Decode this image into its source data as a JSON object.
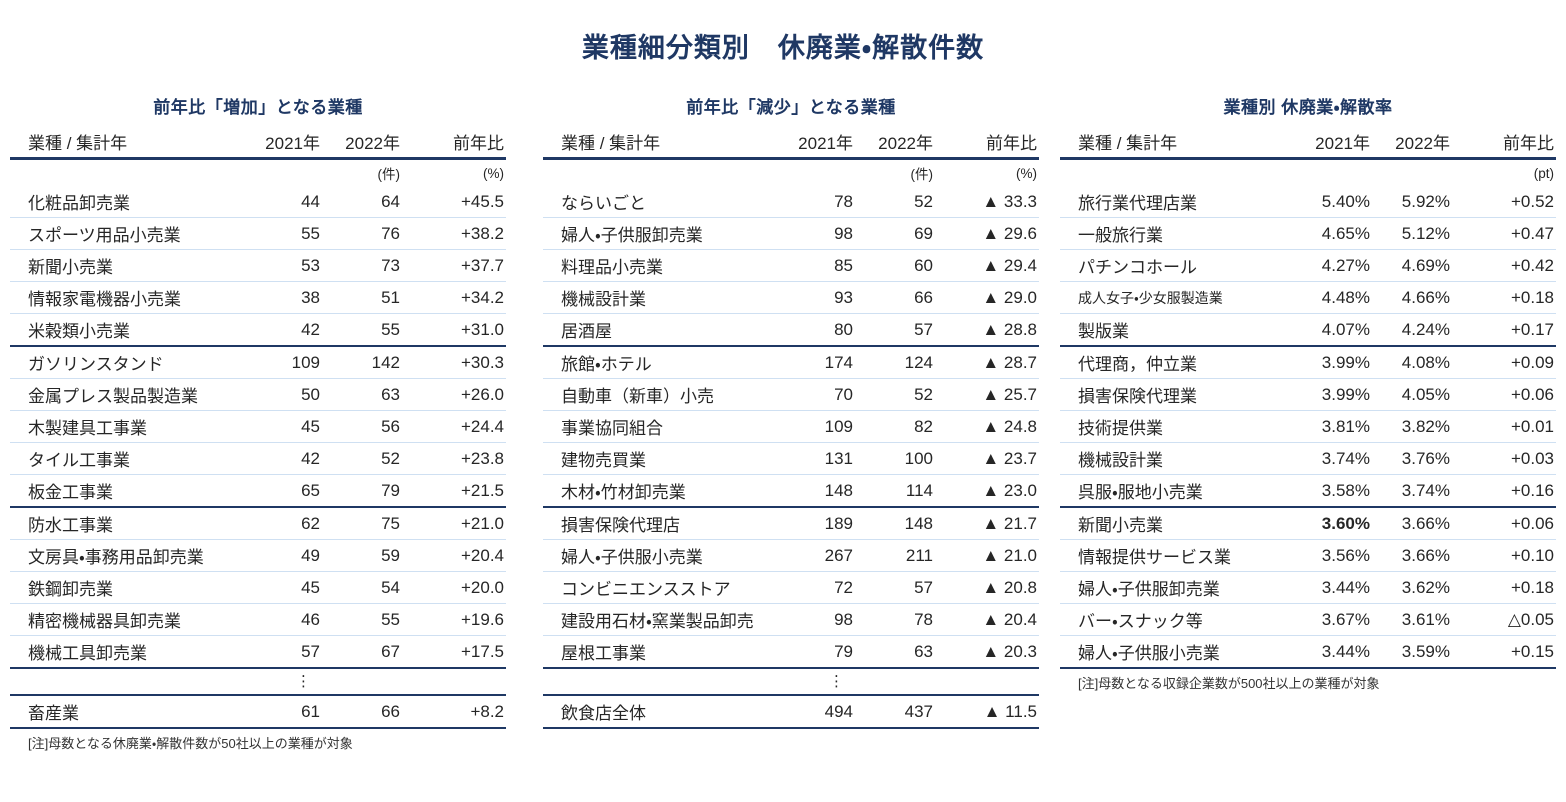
{
  "page_title": "業種細分類別　休廃業・解散件数",
  "colors": {
    "accent_navy": "#1f3864",
    "row_divider": "#cfe0f2",
    "body_text": "#262626"
  },
  "ellipsis_glyph": "⋮",
  "tables": [
    {
      "subtitle": "前年比「増加」となる業種",
      "col_headers": [
        "業種 / 集計年",
        "2021年",
        "2022年",
        "前年比"
      ],
      "units": [
        "",
        "",
        "(件)",
        "(%)"
      ],
      "rows": [
        {
          "label": "化粧品卸売業",
          "v1": "44",
          "v2": "64",
          "yoy": "+45.5"
        },
        {
          "label": "スポーツ用品小売業",
          "v1": "55",
          "v2": "76",
          "yoy": "+38.2"
        },
        {
          "label": "新聞小売業",
          "v1": "53",
          "v2": "73",
          "yoy": "+37.7"
        },
        {
          "label": "情報家電機器小売業",
          "v1": "38",
          "v2": "51",
          "yoy": "+34.2"
        },
        {
          "label": "米穀類小売業",
          "v1": "42",
          "v2": "55",
          "yoy": "+31.0"
        },
        {
          "label": "ガソリンスタンド",
          "v1": "109",
          "v2": "142",
          "yoy": "+30.3"
        },
        {
          "label": "金属プレス製品製造業",
          "v1": "50",
          "v2": "63",
          "yoy": "+26.0"
        },
        {
          "label": "木製建具工事業",
          "v1": "45",
          "v2": "56",
          "yoy": "+24.4"
        },
        {
          "label": "タイル工事業",
          "v1": "42",
          "v2": "52",
          "yoy": "+23.8"
        },
        {
          "label": "板金工事業",
          "v1": "65",
          "v2": "79",
          "yoy": "+21.5"
        },
        {
          "label": "防水工事業",
          "v1": "62",
          "v2": "75",
          "yoy": "+21.0"
        },
        {
          "label": "文房具・事務用品卸売業",
          "v1": "49",
          "v2": "59",
          "yoy": "+20.4"
        },
        {
          "label": "鉄鋼卸売業",
          "v1": "45",
          "v2": "54",
          "yoy": "+20.0"
        },
        {
          "label": "精密機械器具卸売業",
          "v1": "46",
          "v2": "55",
          "yoy": "+19.6"
        },
        {
          "label": "機械工具卸売業",
          "v1": "57",
          "v2": "67",
          "yoy": "+17.5"
        }
      ],
      "has_ellipsis": true,
      "summary": {
        "label": "畜産業",
        "v1": "61",
        "v2": "66",
        "yoy": "+8.2"
      },
      "note": "[注]母数となる休廃業・解散件数が50社以上の業種が対象"
    },
    {
      "subtitle": "前年比「減少」となる業種",
      "col_headers": [
        "業種 / 集計年",
        "2021年",
        "2022年",
        "前年比"
      ],
      "units": [
        "",
        "",
        "(件)",
        "(%)"
      ],
      "rows": [
        {
          "label": "ならいごと",
          "v1": "78",
          "v2": "52",
          "yoy": "▲ 33.3"
        },
        {
          "label": "婦人・子供服卸売業",
          "v1": "98",
          "v2": "69",
          "yoy": "▲ 29.6"
        },
        {
          "label": "料理品小売業",
          "v1": "85",
          "v2": "60",
          "yoy": "▲ 29.4"
        },
        {
          "label": "機械設計業",
          "v1": "93",
          "v2": "66",
          "yoy": "▲ 29.0"
        },
        {
          "label": "居酒屋",
          "v1": "80",
          "v2": "57",
          "yoy": "▲ 28.8"
        },
        {
          "label": "旅館・ホテル",
          "v1": "174",
          "v2": "124",
          "yoy": "▲ 28.7"
        },
        {
          "label": "自動車（新車）小売",
          "v1": "70",
          "v2": "52",
          "yoy": "▲ 25.7"
        },
        {
          "label": "事業協同組合",
          "v1": "109",
          "v2": "82",
          "yoy": "▲ 24.8"
        },
        {
          "label": "建物売買業",
          "v1": "131",
          "v2": "100",
          "yoy": "▲ 23.7"
        },
        {
          "label": "木材・竹材卸売業",
          "v1": "148",
          "v2": "114",
          "yoy": "▲ 23.0"
        },
        {
          "label": "損害保険代理店",
          "v1": "189",
          "v2": "148",
          "yoy": "▲ 21.7"
        },
        {
          "label": "婦人・子供服小売業",
          "v1": "267",
          "v2": "211",
          "yoy": "▲ 21.0"
        },
        {
          "label": "コンビニエンスストア",
          "v1": "72",
          "v2": "57",
          "yoy": "▲ 20.8"
        },
        {
          "label": "建設用石材・窯業製品卸売",
          "v1": "98",
          "v2": "78",
          "yoy": "▲ 20.4"
        },
        {
          "label": "屋根工事業",
          "v1": "79",
          "v2": "63",
          "yoy": "▲ 20.3"
        }
      ],
      "has_ellipsis": true,
      "summary": {
        "label": "飲食店全体",
        "v1": "494",
        "v2": "437",
        "yoy": "▲ 11.5"
      },
      "note": ""
    },
    {
      "subtitle": "業種別 休廃業・解散率",
      "col_headers": [
        "業種 / 集計年",
        "2021年",
        "2022年",
        "前年比"
      ],
      "units": [
        "",
        "",
        "",
        "(pt)"
      ],
      "rows": [
        {
          "label": "旅行業代理店業",
          "v1": "5.40%",
          "v2": "5.92%",
          "yoy": "+0.52"
        },
        {
          "label": "一般旅行業",
          "v1": "4.65%",
          "v2": "5.12%",
          "yoy": "+0.47"
        },
        {
          "label": "パチンコホール",
          "v1": "4.27%",
          "v2": "4.69%",
          "yoy": "+0.42"
        },
        {
          "label": "成人女子・少女服製造業",
          "label_small": true,
          "v1": "4.48%",
          "v2": "4.66%",
          "yoy": "+0.18"
        },
        {
          "label": "製版業",
          "v1": "4.07%",
          "v2": "4.24%",
          "yoy": "+0.17"
        },
        {
          "label": "代理商，仲立業",
          "v1": "3.99%",
          "v2": "4.08%",
          "yoy": "+0.09"
        },
        {
          "label": "損害保険代理業",
          "v1": "3.99%",
          "v2": "4.05%",
          "yoy": "+0.06"
        },
        {
          "label": "技術提供業",
          "v1": "3.81%",
          "v2": "3.82%",
          "yoy": "+0.01"
        },
        {
          "label": "機械設計業",
          "v1": "3.74%",
          "v2": "3.76%",
          "yoy": "+0.03"
        },
        {
          "label": "呉服・服地小売業",
          "v1": "3.58%",
          "v2": "3.74%",
          "yoy": "+0.16"
        },
        {
          "label": "新聞小売業",
          "v1": "3.60%",
          "v1_bold": true,
          "v2": "3.66%",
          "yoy": "+0.06"
        },
        {
          "label": "情報提供サービス業",
          "v1": "3.56%",
          "v2": "3.66%",
          "yoy": "+0.10"
        },
        {
          "label": "婦人・子供服卸売業",
          "v1": "3.44%",
          "v2": "3.62%",
          "yoy": "+0.18"
        },
        {
          "label": "バー・スナック等",
          "v1": "3.67%",
          "v2": "3.61%",
          "yoy": "△0.05"
        },
        {
          "label": "婦人・子供服小売業",
          "v1": "3.44%",
          "v2": "3.59%",
          "yoy": "+0.15"
        }
      ],
      "has_ellipsis": false,
      "summary": null,
      "note": "[注]母数となる収録企業数が500社以上の業種が対象"
    }
  ]
}
